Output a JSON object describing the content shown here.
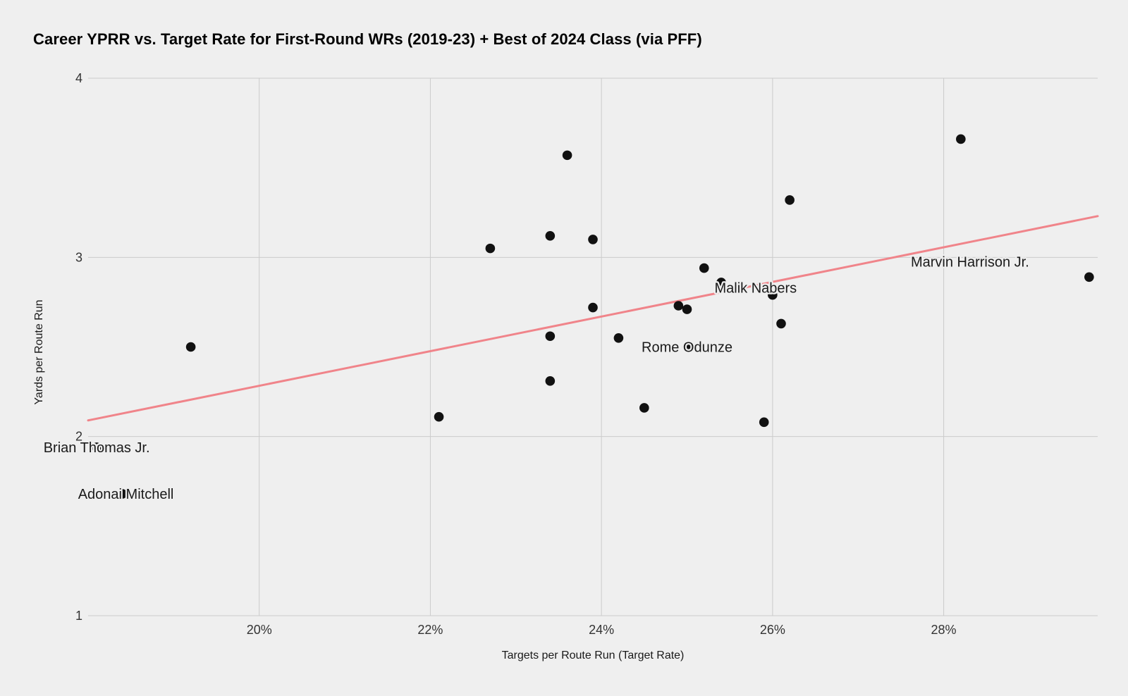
{
  "title": "Career YPRR vs. Target Rate for First-Round WRs (2019-23) + Best of 2024 Class (via PFF)",
  "chart_data": {
    "type": "scatter",
    "title": "Career YPRR vs. Target Rate for First-Round WRs (2019-23) + Best of 2024 Class (via PFF)",
    "xlabel": "Targets per Route Run (Target Rate)",
    "ylabel": "Yards per Route Run",
    "xlim": [
      18.0,
      29.8
    ],
    "ylim": [
      1,
      4
    ],
    "x_ticks": [
      20,
      22,
      24,
      26,
      28
    ],
    "x_tick_suffix": "%",
    "y_ticks": [
      4,
      3,
      2,
      1
    ],
    "grid": true,
    "legend_position": "none",
    "colors": {
      "background": "#efefef",
      "gridline": "#cbcbcb",
      "point": "#111111",
      "trendline": "#f0848a",
      "label_text": "#1a1a1a",
      "tick_text": "#333333"
    },
    "series": [
      {
        "name": "First-Round WRs (2019-23)",
        "points": [
          {
            "x": 19.2,
            "y": 2.5
          },
          {
            "x": 22.1,
            "y": 2.11
          },
          {
            "x": 22.7,
            "y": 3.05
          },
          {
            "x": 23.4,
            "y": 3.12
          },
          {
            "x": 23.4,
            "y": 2.56
          },
          {
            "x": 23.4,
            "y": 2.31
          },
          {
            "x": 23.6,
            "y": 3.57
          },
          {
            "x": 23.9,
            "y": 3.1
          },
          {
            "x": 23.9,
            "y": 2.72
          },
          {
            "x": 24.2,
            "y": 2.55
          },
          {
            "x": 24.5,
            "y": 2.16
          },
          {
            "x": 24.9,
            "y": 2.73
          },
          {
            "x": 25.0,
            "y": 2.71
          },
          {
            "x": 25.2,
            "y": 2.94
          },
          {
            "x": 25.4,
            "y": 2.86
          },
          {
            "x": 25.9,
            "y": 2.08
          },
          {
            "x": 26.1,
            "y": 2.63
          },
          {
            "x": 26.2,
            "y": 3.32
          },
          {
            "x": 28.2,
            "y": 3.66
          }
        ]
      },
      {
        "name": "Best of 2024 Class",
        "points": [
          {
            "label": "Marvin Harrison Jr.",
            "x": 29.7,
            "y": 2.89,
            "label_offset": [
              -169,
              -22
            ]
          },
          {
            "label": "Malik Nabers",
            "x": 26.0,
            "y": 2.79,
            "label_offset": [
              -24,
              -10
            ]
          },
          {
            "label": "Rome Odunze",
            "x": 25.0,
            "y": 2.5,
            "label_offset": [
              0,
              0
            ]
          },
          {
            "label": "Brian Thomas Jr.",
            "x": 18.1,
            "y": 1.94,
            "label_offset": [
              0,
              0
            ]
          },
          {
            "label": "Adonai Mitchell",
            "x": 18.4,
            "y": 1.68,
            "label_offset": [
              5,
              0
            ]
          }
        ]
      }
    ],
    "trendline": {
      "x1": 18.0,
      "y1": 2.09,
      "x2": 29.8,
      "y2": 3.23
    }
  }
}
